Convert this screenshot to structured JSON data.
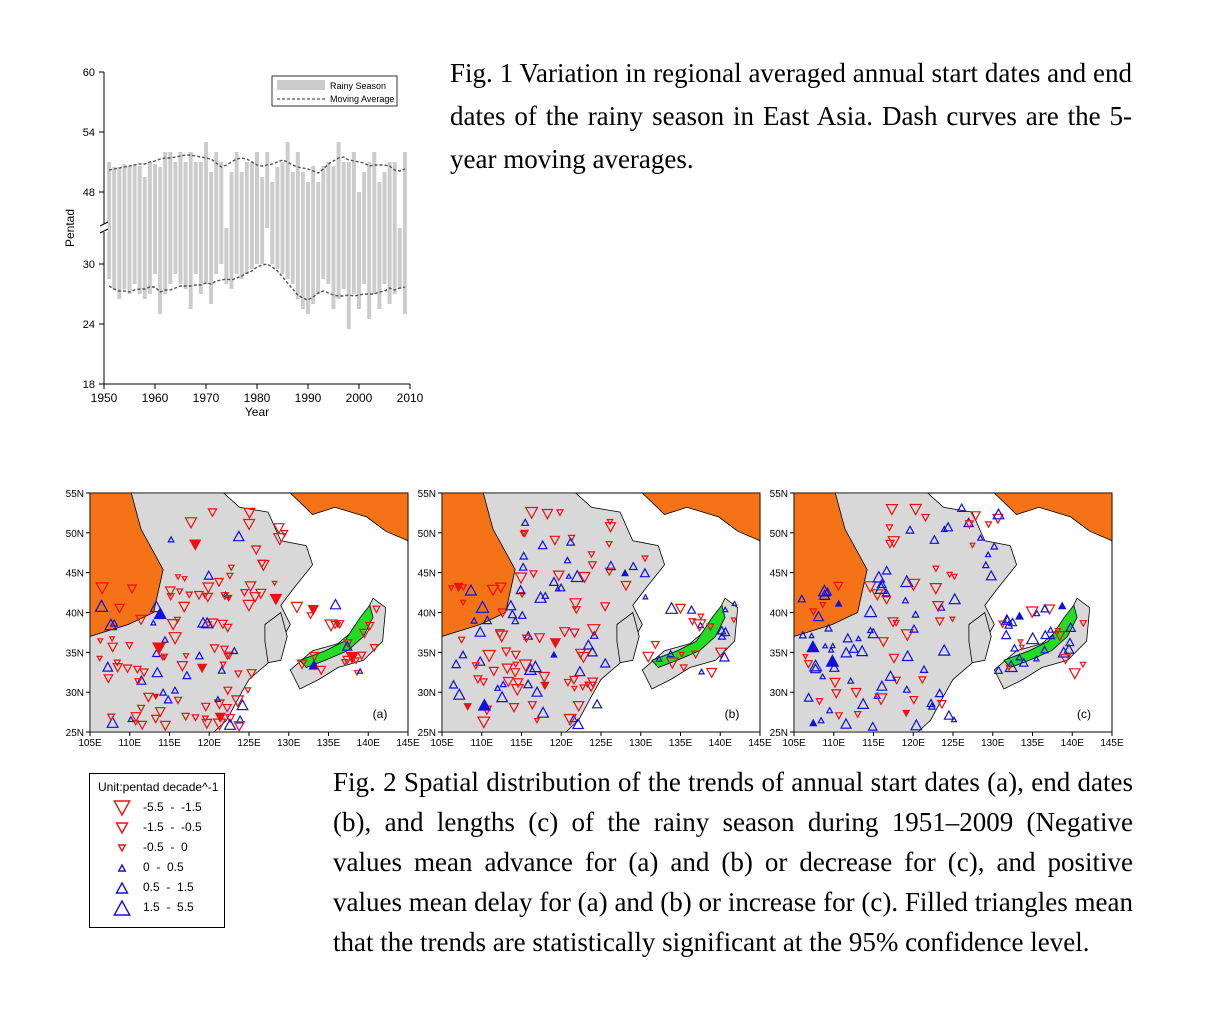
{
  "fig1_caption": "Fig. 1 Variation in regional averaged annual start dates and end dates of the rainy season in East Asia. Dash curves are the 5-year moving averages.",
  "fig2_caption": "Fig. 2 Spatial distribution of the trends of annual start dates (a), end dates (b), and lengths (c) of the rainy season during 1951–2009 (Negative values mean advance for (a) and (b) or decrease for (c), and positive values mean delay for (a) and (b) or increase for (c). Filled triangles mean that the trends are statistically significant at the 95% confidence level.",
  "chart_data": [
    {
      "type": "bar",
      "ylabel": "Pentad",
      "xlabel": "Year",
      "ylim": [
        18,
        60
      ],
      "xlim": [
        1950,
        2010
      ],
      "y_ticks": [
        "60",
        "54",
        "48",
        "30",
        "24",
        "18"
      ],
      "x_ticks": [
        "1950",
        "1960",
        "1970",
        "1980",
        "1990",
        "2000",
        "2010"
      ],
      "axis_break": "between 48 and 30",
      "legend_position": "top-right",
      "series": [
        {
          "name": "Rainy Season",
          "x": [
            1951,
            1952,
            1953,
            1954,
            1955,
            1956,
            1957,
            1958,
            1959,
            1960,
            1961,
            1962,
            1963,
            1964,
            1965,
            1966,
            1967,
            1968,
            1969,
            1970,
            1971,
            1972,
            1973,
            1974,
            1975,
            1976,
            1977,
            1978,
            1979,
            1980,
            1981,
            1982,
            1983,
            1984,
            1985,
            1986,
            1987,
            1988,
            1989,
            1990,
            1991,
            1992,
            1993,
            1994,
            1995,
            1996,
            1997,
            1998,
            1999,
            2000,
            2001,
            2002,
            2003,
            2004,
            2005,
            2006,
            2007,
            2008,
            2009
          ],
          "start": [
            28.5,
            27.5,
            26.5,
            27.5,
            27,
            28,
            27,
            26.5,
            27,
            29,
            25,
            27,
            28,
            29,
            28,
            27.5,
            25.5,
            29,
            27,
            28,
            26,
            29,
            30,
            28,
            27.5,
            29,
            28.5,
            29,
            29.5,
            30,
            30,
            30.5,
            30,
            29.5,
            29,
            28.5,
            28,
            26.5,
            25.5,
            25,
            26,
            27,
            28.5,
            28,
            25.5,
            26.5,
            27.5,
            23.5,
            27,
            25.5,
            28,
            24.5,
            27,
            25.5,
            28,
            26,
            27,
            27.5,
            25
          ],
          "end": [
            51,
            50.5,
            50.5,
            50.8,
            50.6,
            50.8,
            50.6,
            49.5,
            51,
            50.8,
            50.5,
            52,
            52,
            51,
            52,
            51,
            52,
            51,
            51,
            53,
            50,
            52,
            51,
            47,
            50,
            52,
            50,
            51,
            51,
            52,
            49.5,
            52,
            49,
            50.5,
            51,
            53,
            50,
            52,
            50,
            49,
            50.6,
            49,
            50.6,
            51,
            50.6,
            53,
            51,
            51,
            52,
            48,
            50,
            51,
            52,
            49,
            50,
            51,
            51,
            47,
            52
          ]
        },
        {
          "name": "Moving Average",
          "start": [
            27.8,
            27.5,
            27.3,
            27.3,
            27.2,
            27.4,
            27.5,
            27.5,
            27.7,
            27.7,
            27.2,
            27.4,
            27.4,
            27.6,
            27.8,
            27.8,
            27.8,
            27.9,
            27.9,
            28.1,
            28,
            28.3,
            28.4,
            28.5,
            28.4,
            28.6,
            28.8,
            29.1,
            29.3,
            29.7,
            29.9,
            30,
            29.7,
            29.3,
            28.7,
            28.1,
            27.5,
            26.9,
            26.6,
            26.4,
            26.7,
            27.1,
            27.3,
            27.1,
            26.9,
            26.8,
            26.8,
            26.9,
            26.8,
            26.9,
            27,
            27,
            27,
            27.2,
            27.3,
            27.6,
            27.4,
            27.6,
            27.7
          ],
          "end": [
            50.2,
            50.3,
            50.4,
            50.5,
            50.6,
            50.7,
            50.8,
            50.8,
            51,
            51.1,
            51.3,
            51.4,
            51.4,
            51.5,
            51.6,
            51.7,
            51.7,
            51.6,
            51.5,
            51.4,
            51.3,
            50.9,
            50.5,
            50.7,
            51,
            51.3,
            51.4,
            51.3,
            51,
            50.7,
            50.6,
            50.7,
            50.8,
            51,
            51.2,
            51,
            50.7,
            50.5,
            50.4,
            50.3,
            50.1,
            49.9,
            50.3,
            50.8,
            51.1,
            51.4,
            51.5,
            51.2,
            51.1,
            51,
            50.9,
            50.6,
            50.7,
            50.7,
            50.7,
            50.6,
            50.2,
            50.1,
            50.3
          ]
        }
      ]
    }
  ],
  "maps": {
    "lat_labels": [
      "55N",
      "50N",
      "45N",
      "40N",
      "35N",
      "30N",
      "25N"
    ],
    "lon_labels": [
      "105E",
      "110E",
      "115E",
      "120E",
      "125E",
      "130E",
      "135E",
      "140E",
      "145E"
    ],
    "panels": [
      {
        "label": "(a)",
        "seed": 11,
        "red_bias": 0.78
      },
      {
        "label": "(b)",
        "seed": 23,
        "red_bias": 0.55
      },
      {
        "label": "(c)",
        "seed": 37,
        "red_bias": 0.35
      }
    ],
    "colors": {
      "land": "#d8d8d8",
      "outside": "#f47316",
      "sea": "#ffffff",
      "red": "#ee1111",
      "blue": "#1111dd",
      "green": "#22dd22"
    }
  },
  "legend": {
    "title": "Unit:pentad decade^-1",
    "items": [
      {
        "label": "-5.5  -  -1.5",
        "dir": "down",
        "size": "large"
      },
      {
        "label": "-1.5  -  -0.5",
        "dir": "down",
        "size": "medium"
      },
      {
        "label": "-0.5  -  0",
        "dir": "down",
        "size": "small"
      },
      {
        "label": "0  -  0.5",
        "dir": "up",
        "size": "small"
      },
      {
        "label": "0.5  -  1.5",
        "dir": "up",
        "size": "medium"
      },
      {
        "label": "1.5  -  5.5",
        "dir": "up",
        "size": "large"
      }
    ]
  }
}
